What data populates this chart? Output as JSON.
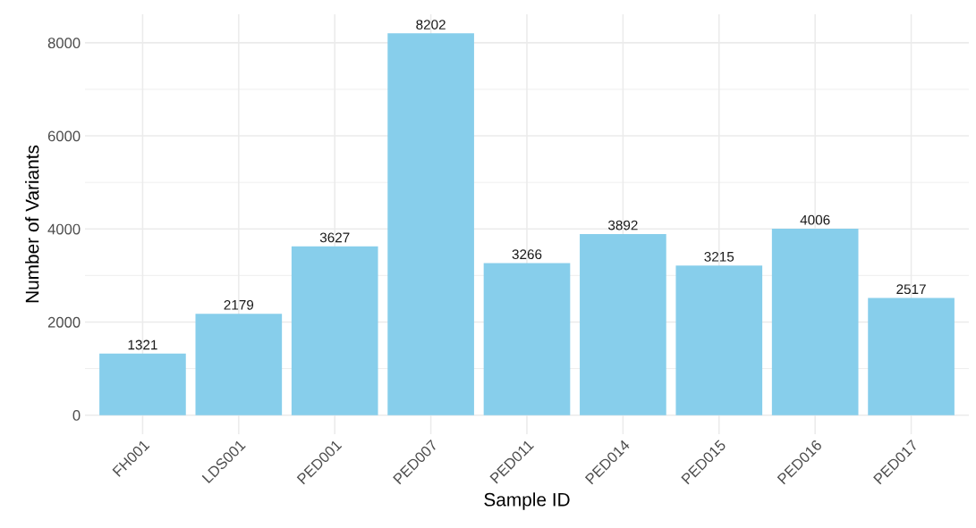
{
  "chart_data": {
    "type": "bar",
    "xlabel": "Sample ID",
    "ylabel": "Number of Variants",
    "categories": [
      "FH001",
      "LDS001",
      "PED001",
      "PED007",
      "PED011",
      "PED014",
      "PED015",
      "PED016",
      "PED017"
    ],
    "values": [
      1321,
      2179,
      3627,
      8202,
      3266,
      3892,
      3215,
      4006,
      2517
    ],
    "color": "#87ceeb",
    "data_labels": true,
    "grid": true,
    "legend": false,
    "ylim": [
      -410,
      8612
    ],
    "yticks": [
      0,
      2000,
      4000,
      6000,
      8000
    ]
  }
}
